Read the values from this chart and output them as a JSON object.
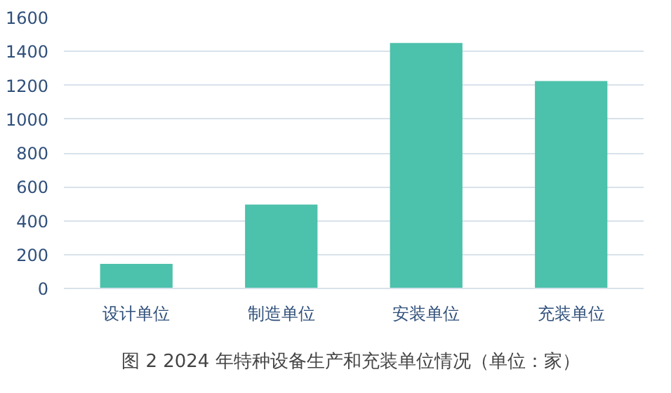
{
  "chart_data": {
    "type": "bar",
    "title": "图 2  2024 年特种设备生产和充装单位情况（单位：家）",
    "categories": [
      "设计单位",
      "制造单位",
      "安装单位",
      "充装单位"
    ],
    "values": [
      145,
      495,
      1450,
      1225
    ],
    "color": "#4cc1ab",
    "ylim": [
      0,
      1600
    ],
    "yticks": [
      0,
      200,
      400,
      600,
      800,
      1000,
      1200,
      1400,
      1600
    ],
    "grid": "y"
  }
}
